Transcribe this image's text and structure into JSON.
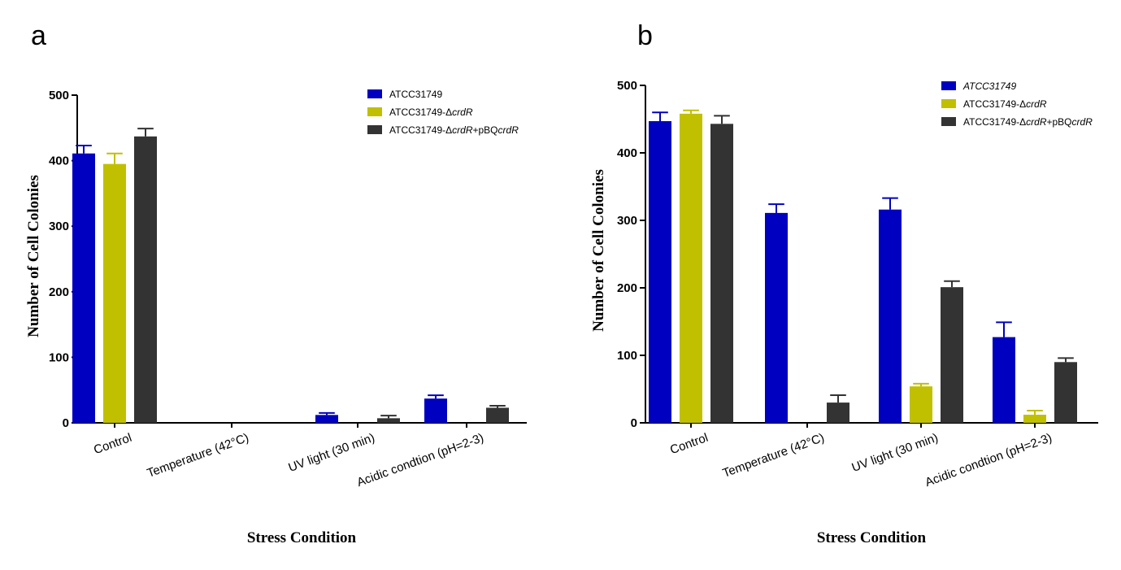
{
  "colors": {
    "series": [
      "#0000c0",
      "#c0c000",
      "#333333"
    ]
  },
  "chart_data": [
    {
      "panel_label": "a",
      "type": "bar",
      "xlabel": "Stress Condition",
      "ylabel": "Number of Cell Colonies",
      "ylim": [
        0,
        500
      ],
      "yticks": [
        "0",
        "100",
        "200",
        "300",
        "400",
        "500"
      ],
      "categories": [
        "Control",
        "Temperature (42°C)",
        "UV light (30 min)",
        "Acidic condtion (pH=2-3)"
      ],
      "legend_position": "top-right",
      "series": [
        {
          "name": "ATCC31749",
          "values": [
            411,
            0,
            12,
            37
          ],
          "errors": [
            12,
            0,
            3,
            5
          ]
        },
        {
          "name": "ATCC31749-ΔcrdR",
          "values": [
            395,
            0,
            0,
            0
          ],
          "errors": [
            16,
            0,
            0,
            0
          ]
        },
        {
          "name": "ATCC31749-ΔcrdR+pBQcrdR",
          "values": [
            437,
            0,
            7,
            23
          ],
          "errors": [
            12,
            0,
            4,
            3
          ]
        }
      ]
    },
    {
      "panel_label": "b",
      "type": "bar",
      "xlabel": "Stress Condition",
      "ylabel": "Number of Cell Colonies",
      "ylim": [
        0,
        500
      ],
      "yticks": [
        "0",
        "100",
        "200",
        "300",
        "400",
        "500"
      ],
      "categories": [
        "Control",
        "Temperature (42°C)",
        "UV light (30 min)",
        "Acidic condtion (pH=2-3)"
      ],
      "legend_position": "top-right",
      "series": [
        {
          "name": "ATCC31749",
          "values": [
            447,
            311,
            316,
            127
          ],
          "errors": [
            13,
            13,
            17,
            22
          ]
        },
        {
          "name": "ATCC31749-ΔcrdR",
          "values": [
            458,
            0,
            54,
            12
          ],
          "errors": [
            5,
            0,
            4,
            6
          ]
        },
        {
          "name": "ATCC31749-ΔcrdR+pBQcrdR",
          "values": [
            443,
            30,
            201,
            90
          ],
          "errors": [
            12,
            11,
            9,
            6
          ]
        }
      ]
    }
  ]
}
